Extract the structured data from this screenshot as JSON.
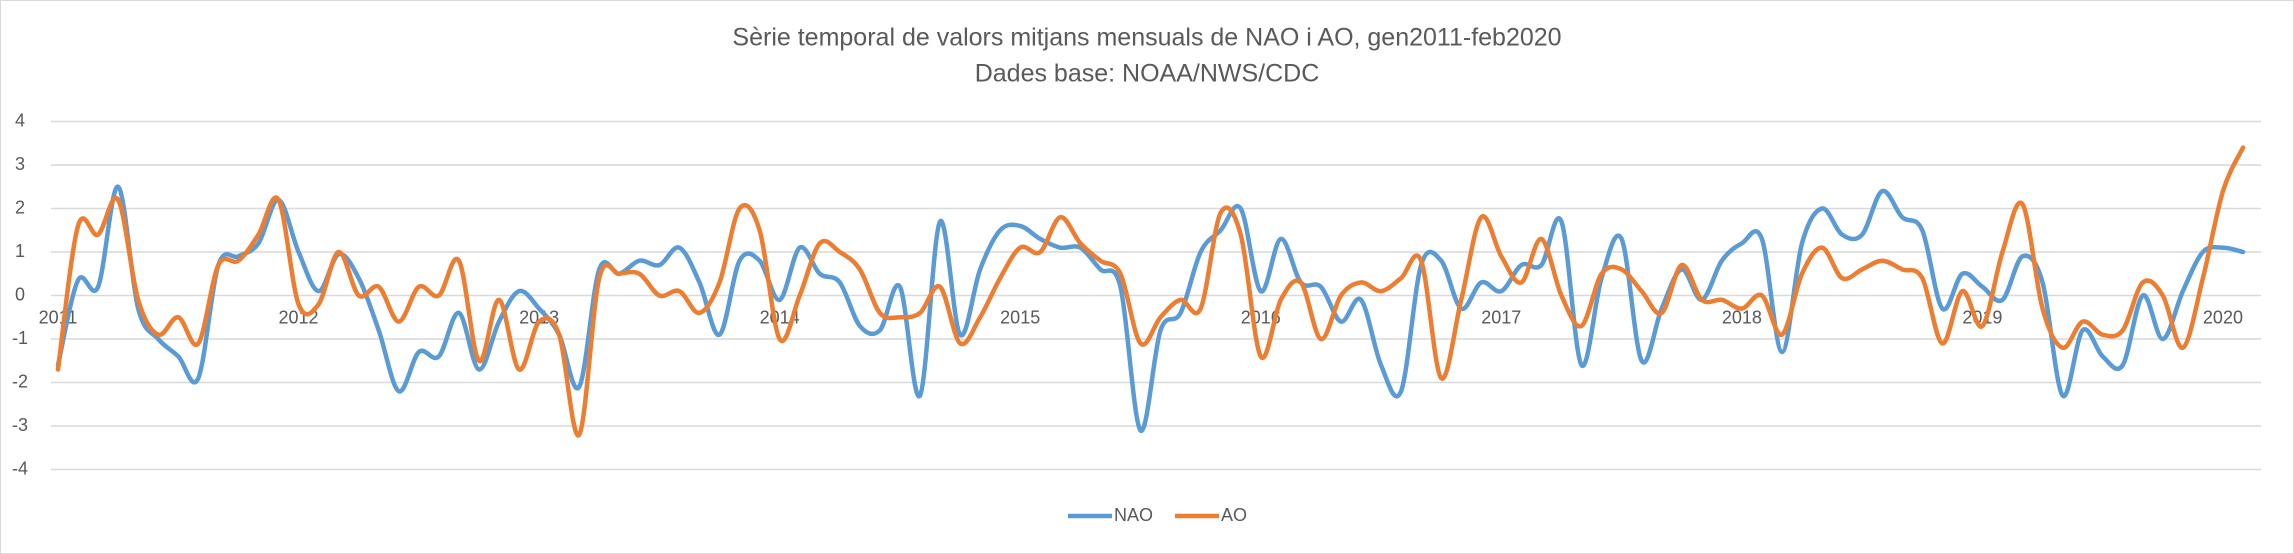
{
  "chart_data": {
    "type": "line",
    "title": "Sèrie temporal de valors mitjans mensuals de NAO i AO, gen2011-feb2020",
    "subtitle": "Dades base: NOAA/NWS/CDC",
    "categories": [
      "2011",
      null,
      null,
      null,
      null,
      null,
      null,
      null,
      null,
      null,
      null,
      null,
      "2012",
      null,
      null,
      null,
      null,
      null,
      null,
      null,
      null,
      null,
      null,
      null,
      "2013",
      null,
      null,
      null,
      null,
      null,
      null,
      null,
      null,
      null,
      null,
      null,
      "2014",
      null,
      null,
      null,
      null,
      null,
      null,
      null,
      null,
      null,
      null,
      null,
      "2015",
      null,
      null,
      null,
      null,
      null,
      null,
      null,
      null,
      null,
      null,
      null,
      "2016",
      null,
      null,
      null,
      null,
      null,
      null,
      null,
      null,
      null,
      null,
      null,
      "2017",
      null,
      null,
      null,
      null,
      null,
      null,
      null,
      null,
      null,
      null,
      null,
      "2018",
      null,
      null,
      null,
      null,
      null,
      null,
      null,
      null,
      null,
      null,
      null,
      "2019",
      null,
      null,
      null,
      null,
      null,
      null,
      null,
      null,
      null,
      null,
      null,
      "2020",
      null
    ],
    "series": [
      {
        "name": "NAO",
        "color": "#5b9bd5",
        "values": [
          -1.6,
          0.35,
          0.2,
          2.5,
          -0.3,
          -1.0,
          -1.4,
          -1.9,
          0.7,
          0.9,
          1.2,
          2.2,
          1.0,
          0.1,
          0.95,
          0.4,
          -0.8,
          -2.2,
          -1.3,
          -1.4,
          -0.4,
          -1.7,
          -0.6,
          0.1,
          -0.3,
          -0.9,
          -2.1,
          0.6,
          0.5,
          0.8,
          0.7,
          1.1,
          0.3,
          -0.9,
          0.8,
          0.8,
          -0.1,
          1.1,
          0.5,
          0.3,
          -0.7,
          -0.8,
          0.2,
          -2.3,
          1.7,
          -0.9,
          0.6,
          1.5,
          1.6,
          1.3,
          1.1,
          1.1,
          0.6,
          0.2,
          -3.1,
          -0.8,
          -0.4,
          1.0,
          1.5,
          2.0,
          0.1,
          1.3,
          0.3,
          0.2,
          -0.6,
          -0.1,
          -1.6,
          -2.2,
          0.7,
          0.8,
          -0.3,
          0.3,
          0.1,
          0.7,
          0.7,
          1.7,
          -1.6,
          0.4,
          1.3,
          -1.5,
          -0.3,
          0.6,
          -0.1,
          0.8,
          1.2,
          1.3,
          -1.3,
          1.2,
          2.0,
          1.4,
          1.4,
          2.4,
          1.8,
          1.5,
          -0.3,
          0.5,
          0.2,
          -0.1,
          0.9,
          0.3,
          -2.3,
          -0.8,
          -1.4,
          -1.6,
          0.0,
          -1.0,
          0.1,
          1.0,
          1.1,
          1.0
        ]
      },
      {
        "name": "AO",
        "color": "#ed7d31",
        "values": [
          -1.7,
          1.6,
          1.4,
          2.2,
          -0.1,
          -0.9,
          -0.5,
          -1.1,
          0.7,
          0.8,
          1.4,
          2.2,
          -0.2,
          -0.2,
          1.0,
          0.0,
          0.2,
          -0.6,
          0.2,
          0.0,
          0.8,
          -1.5,
          -0.1,
          -1.7,
          -0.6,
          -0.9,
          -3.2,
          0.4,
          0.5,
          0.5,
          0.0,
          0.1,
          -0.4,
          0.3,
          2.0,
          1.5,
          -1.0,
          0.0,
          1.2,
          1.0,
          0.6,
          -0.4,
          -0.5,
          -0.4,
          0.2,
          -1.1,
          -0.5,
          0.4,
          1.1,
          1.0,
          1.8,
          1.2,
          0.8,
          0.5,
          -1.1,
          -0.5,
          -0.1,
          -0.3,
          1.9,
          1.4,
          -1.4,
          -0.1,
          0.3,
          -1.0,
          0.0,
          0.3,
          0.1,
          0.4,
          0.8,
          -1.9,
          -0.1,
          1.8,
          0.9,
          0.3,
          1.3,
          0.0,
          -0.7,
          0.5,
          0.6,
          0.1,
          -0.4,
          0.7,
          -0.1,
          -0.1,
          -0.3,
          0.0,
          -0.9,
          0.5,
          1.1,
          0.4,
          0.6,
          0.8,
          0.6,
          0.4,
          -1.1,
          0.1,
          -0.7,
          1.0,
          2.1,
          -0.3,
          -1.2,
          -0.6,
          -0.9,
          -0.8,
          0.3,
          0.0,
          -1.2,
          0.4,
          2.4,
          3.4
        ]
      }
    ],
    "ylim": [
      -4,
      4
    ],
    "yticks": [
      -4,
      -3,
      -2,
      -1,
      0,
      1,
      2,
      3,
      4
    ],
    "grid": true,
    "legend": "bottom"
  }
}
